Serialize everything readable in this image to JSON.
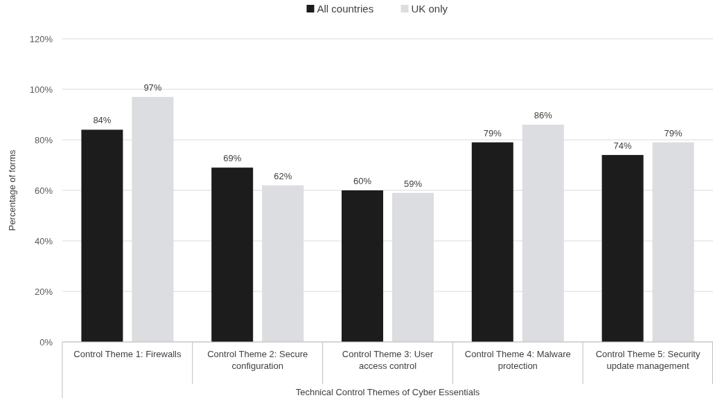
{
  "chart_data": {
    "type": "bar",
    "xlabel": "Technical Control Themes of Cyber Essentials",
    "ylabel": "Percentage of forms",
    "categories": [
      "Control Theme 1: Firewalls",
      "Control Theme 2: Secure configuration",
      "Control Theme 3: User access control",
      "Control Theme 4: Malware protection",
      "Control Theme 5: Security update management"
    ],
    "series": [
      {
        "name": "All countries",
        "color": "#1c1c1c",
        "values": [
          84,
          69,
          60,
          79,
          74
        ],
        "value_labels": [
          "84%",
          "69%",
          "60%",
          "79%",
          "74%"
        ]
      },
      {
        "name": "UK only",
        "color": "#dcdde0",
        "values": [
          97,
          62,
          59,
          86,
          79
        ],
        "value_labels": [
          "97%",
          "62%",
          "59%",
          "86%",
          "79%"
        ]
      }
    ],
    "ylim": [
      0,
      120
    ],
    "yticks": [
      {
        "value": 0,
        "label": "0%"
      },
      {
        "value": 20,
        "label": "20%"
      },
      {
        "value": 40,
        "label": "40%"
      },
      {
        "value": 60,
        "label": "60%"
      },
      {
        "value": 80,
        "label": "80%"
      },
      {
        "value": 100,
        "label": "100%"
      },
      {
        "value": 120,
        "label": "120%"
      }
    ],
    "grid": "y",
    "legend": "top"
  }
}
